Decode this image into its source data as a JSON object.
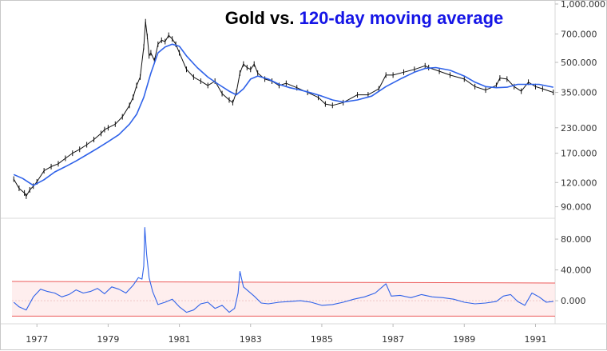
{
  "chart_data": [
    {
      "type": "line",
      "title_parts": [
        {
          "text": "Gold vs. ",
          "color": "#000000"
        },
        {
          "text": "120-day moving average",
          "color": "#1515e6"
        }
      ],
      "yscale": "log",
      "ylim": [
        80,
        1000
      ],
      "y_ticks": [
        {
          "value": 1000,
          "label": "1,000.000"
        },
        {
          "value": 700,
          "label": "700.000"
        },
        {
          "value": 500,
          "label": "500.000"
        },
        {
          "value": 350,
          "label": "350.000"
        },
        {
          "value": 230,
          "label": "230.000"
        },
        {
          "value": 170,
          "label": "170.000"
        },
        {
          "value": 120,
          "label": "120.000"
        },
        {
          "value": 90,
          "label": "90.000"
        }
      ],
      "xlim": [
        1976.3,
        1991.55
      ],
      "series": [
        {
          "style": "price",
          "color": "#111111",
          "x": [
            1976.35,
            1976.5,
            1976.65,
            1976.7,
            1976.8,
            1976.9,
            1977.0,
            1977.2,
            1977.4,
            1977.6,
            1977.8,
            1978.0,
            1978.2,
            1978.4,
            1978.6,
            1978.8,
            1978.9,
            1979.0,
            1979.2,
            1979.4,
            1979.6,
            1979.7,
            1979.8,
            1979.9,
            1980.0,
            1980.05,
            1980.1,
            1980.15,
            1980.2,
            1980.3,
            1980.4,
            1980.5,
            1980.6,
            1980.7,
            1980.8,
            1980.9,
            1981.0,
            1981.2,
            1981.4,
            1981.6,
            1981.8,
            1982.0,
            1982.2,
            1982.4,
            1982.5,
            1982.6,
            1982.7,
            1982.8,
            1982.9,
            1983.0,
            1983.1,
            1983.2,
            1983.4,
            1983.6,
            1983.8,
            1984.0,
            1984.3,
            1984.6,
            1984.9,
            1985.1,
            1985.3,
            1985.6,
            1986.0,
            1986.3,
            1986.6,
            1986.8,
            1987.0,
            1987.3,
            1987.6,
            1987.9,
            1988.0,
            1988.3,
            1988.6,
            1989.0,
            1989.3,
            1989.6,
            1989.9,
            1990.0,
            1990.2,
            1990.4,
            1990.6,
            1990.8,
            1991.0,
            1991.2,
            1991.5
          ],
          "y": [
            125,
            112,
            106,
            102,
            110,
            115,
            121,
            138,
            145,
            150,
            160,
            170,
            178,
            188,
            200,
            215,
            225,
            230,
            240,
            262,
            300,
            330,
            380,
            420,
            600,
            810,
            680,
            540,
            560,
            510,
            620,
            650,
            640,
            690,
            660,
            620,
            560,
            460,
            420,
            400,
            380,
            400,
            345,
            320,
            310,
            350,
            440,
            490,
            470,
            460,
            490,
            440,
            410,
            400,
            380,
            390,
            370,
            350,
            330,
            305,
            300,
            310,
            340,
            340,
            365,
            430,
            430,
            445,
            460,
            480,
            470,
            450,
            430,
            410,
            375,
            360,
            380,
            415,
            410,
            375,
            355,
            395,
            375,
            365,
            350
          ]
        },
        {
          "name": "120-day moving average",
          "style": "ma",
          "color": "#2f62e9",
          "x": [
            1976.35,
            1976.6,
            1976.9,
            1977.2,
            1977.5,
            1977.8,
            1978.1,
            1978.4,
            1978.7,
            1979.0,
            1979.3,
            1979.6,
            1979.8,
            1980.0,
            1980.2,
            1980.4,
            1980.6,
            1980.8,
            1981.0,
            1981.2,
            1981.5,
            1981.8,
            1982.1,
            1982.4,
            1982.6,
            1982.8,
            1983.0,
            1983.2,
            1983.5,
            1983.8,
            1984.1,
            1984.4,
            1984.7,
            1985.0,
            1985.3,
            1985.6,
            1986.0,
            1986.4,
            1986.8,
            1987.2,
            1987.6,
            1987.9,
            1988.2,
            1988.6,
            1989.0,
            1989.3,
            1989.6,
            1989.9,
            1990.2,
            1990.5,
            1990.8,
            1991.1,
            1991.5
          ],
          "y": [
            132,
            126,
            116,
            124,
            136,
            145,
            155,
            167,
            180,
            195,
            212,
            240,
            270,
            330,
            440,
            560,
            600,
            620,
            605,
            540,
            470,
            420,
            385,
            355,
            340,
            365,
            410,
            425,
            410,
            385,
            370,
            360,
            348,
            335,
            320,
            312,
            320,
            335,
            375,
            410,
            445,
            465,
            470,
            455,
            425,
            395,
            375,
            370,
            372,
            385,
            385,
            385,
            372
          ]
        }
      ]
    },
    {
      "type": "line",
      "ylim": [
        -30,
        105
      ],
      "y_ticks": [
        {
          "value": 80,
          "label": "80.000"
        },
        {
          "value": 40,
          "label": "40.000"
        },
        {
          "value": 0,
          "label": "0.000"
        }
      ],
      "x_ticks": [
        "1977",
        "1979",
        "1981",
        "1983",
        "1985",
        "1987",
        "1989",
        "1991"
      ],
      "x_tick_values": [
        1977,
        1979,
        1981,
        1983,
        1985,
        1987,
        1989,
        1991
      ],
      "xlim": [
        1976.3,
        1991.55
      ],
      "band": {
        "upper": 25,
        "lower": -20,
        "upper_end": 23,
        "lower_end": -20,
        "color": "#ec5b5b",
        "fill": "#fde7e7"
      },
      "series": [
        {
          "style": "osc",
          "color": "#2f62e9",
          "x": [
            1976.35,
            1976.5,
            1976.7,
            1976.9,
            1977.1,
            1977.3,
            1977.5,
            1977.7,
            1977.9,
            1978.1,
            1978.3,
            1978.5,
            1978.7,
            1978.9,
            1979.1,
            1979.3,
            1979.5,
            1979.7,
            1979.85,
            1979.95,
            1980.0,
            1980.03,
            1980.08,
            1980.15,
            1980.25,
            1980.4,
            1980.6,
            1980.8,
            1981.0,
            1981.2,
            1981.4,
            1981.6,
            1981.8,
            1982.0,
            1982.2,
            1982.4,
            1982.55,
            1982.65,
            1982.7,
            1982.8,
            1982.95,
            1983.1,
            1983.3,
            1983.5,
            1983.8,
            1984.1,
            1984.4,
            1984.7,
            1985.0,
            1985.3,
            1985.6,
            1985.9,
            1986.2,
            1986.5,
            1986.7,
            1986.8,
            1986.95,
            1987.2,
            1987.5,
            1987.8,
            1988.1,
            1988.4,
            1988.7,
            1989.0,
            1989.3,
            1989.6,
            1989.9,
            1990.1,
            1990.3,
            1990.5,
            1990.7,
            1990.9,
            1991.1,
            1991.3,
            1991.5
          ],
          "y": [
            -2,
            -8,
            -12,
            5,
            15,
            12,
            10,
            5,
            8,
            14,
            10,
            12,
            16,
            9,
            18,
            15,
            10,
            20,
            30,
            28,
            45,
            95,
            60,
            30,
            12,
            -5,
            -2,
            2,
            -8,
            -15,
            -12,
            -4,
            -2,
            -10,
            -6,
            -15,
            -10,
            10,
            38,
            18,
            12,
            6,
            -3,
            -4,
            -2,
            -1,
            0,
            -2,
            -6,
            -5,
            -2,
            2,
            5,
            10,
            18,
            22,
            6,
            7,
            4,
            8,
            5,
            4,
            2,
            -2,
            -4,
            -3,
            -1,
            6,
            8,
            -1,
            -6,
            10,
            5,
            -2,
            -1
          ]
        }
      ]
    }
  ]
}
